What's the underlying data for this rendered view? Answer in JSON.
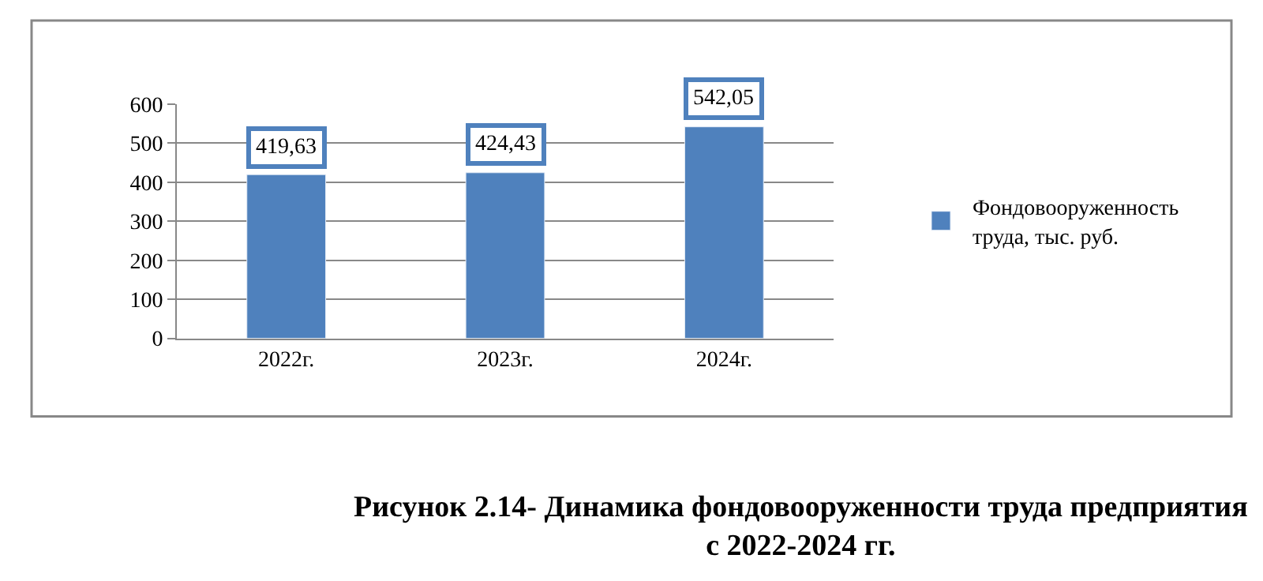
{
  "chart_data": {
    "type": "bar",
    "title": "Рисунок 2.14- Динамика фондовооруженности труда предприятия\nс 2022-2024 гг.",
    "categories": [
      "2022г.",
      "2023г.",
      "2024г."
    ],
    "series": [
      {
        "name": "Фондовооруженность\nтруда, тыс. руб.",
        "color": "#4f81bd",
        "values": [
          419.63,
          424.43,
          542.05
        ],
        "value_labels": [
          "419,63",
          "424,43",
          "542,05"
        ]
      }
    ],
    "ylim": [
      0,
      600
    ],
    "yticks": [
      0,
      100,
      200,
      300,
      400,
      500,
      600
    ],
    "grid": "y",
    "legend": "right"
  }
}
